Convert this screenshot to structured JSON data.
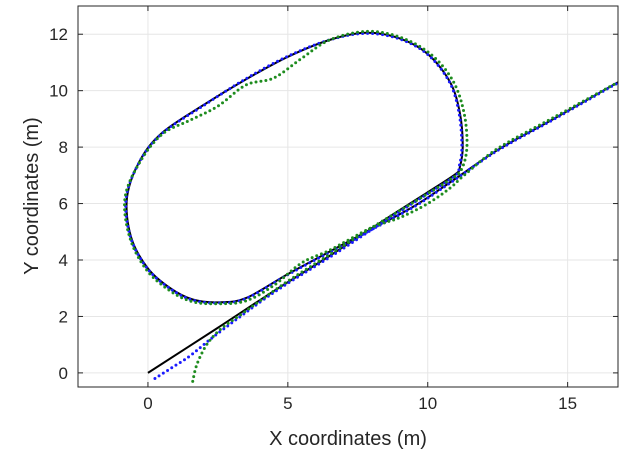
{
  "chart_data": {
    "type": "line",
    "xlabel": "X coordinates (m)",
    "ylabel": "Y coordinates (m)",
    "xlim": [
      -2.5,
      16.8
    ],
    "ylim": [
      -0.5,
      13.0
    ],
    "xticks": [
      0,
      5,
      10,
      15
    ],
    "yticks": [
      0,
      2,
      4,
      6,
      8,
      10,
      12
    ],
    "xtick_labels": [
      "0",
      "5",
      "10",
      "15"
    ],
    "ytick_labels": [
      "0",
      "2",
      "4",
      "6",
      "8",
      "10",
      "12"
    ],
    "grid": true,
    "series": [
      {
        "style": "solid-line",
        "color": "#000000",
        "points": [
          [
            0.0,
            0.0
          ],
          [
            2.5,
            1.6
          ],
          [
            4.5,
            2.9
          ],
          [
            6.5,
            4.15
          ],
          [
            8.5,
            5.45
          ],
          [
            10.0,
            6.4
          ],
          [
            11.0,
            7.05
          ],
          [
            11.15,
            7.3
          ],
          [
            11.25,
            8.0
          ],
          [
            11.15,
            9.2
          ],
          [
            10.8,
            10.3
          ],
          [
            10.0,
            11.3
          ],
          [
            9.0,
            11.85
          ],
          [
            7.8,
            12.05
          ],
          [
            6.5,
            11.8
          ],
          [
            5.0,
            11.2
          ],
          [
            3.5,
            10.4
          ],
          [
            2.0,
            9.5
          ],
          [
            0.5,
            8.5
          ],
          [
            -0.3,
            7.5
          ],
          [
            -0.75,
            6.2
          ],
          [
            -0.6,
            4.8
          ],
          [
            0.0,
            3.7
          ],
          [
            0.8,
            3.0
          ],
          [
            1.6,
            2.6
          ],
          [
            2.5,
            2.5
          ],
          [
            3.5,
            2.65
          ],
          [
            5.0,
            3.5
          ],
          [
            6.5,
            4.3
          ],
          [
            8.0,
            5.1
          ],
          [
            9.5,
            5.9
          ],
          [
            10.8,
            6.75
          ],
          [
            12.5,
            7.9
          ],
          [
            14.5,
            9.0
          ],
          [
            16.8,
            10.3
          ]
        ]
      },
      {
        "style": "dotted",
        "color": "#1a1aff",
        "points": [
          [
            0.25,
            -0.2
          ],
          [
            0.8,
            0.15
          ],
          [
            1.5,
            0.6
          ],
          [
            2.5,
            1.4
          ],
          [
            4.5,
            2.85
          ],
          [
            6.5,
            4.1
          ],
          [
            8.5,
            5.4
          ],
          [
            10.0,
            6.35
          ],
          [
            11.0,
            7.0
          ],
          [
            11.12,
            7.3
          ],
          [
            11.22,
            8.0
          ],
          [
            11.12,
            9.2
          ],
          [
            10.78,
            10.3
          ],
          [
            10.0,
            11.28
          ],
          [
            9.0,
            11.83
          ],
          [
            7.8,
            12.03
          ],
          [
            6.5,
            11.8
          ],
          [
            5.0,
            11.22
          ],
          [
            3.5,
            10.42
          ],
          [
            2.0,
            9.48
          ],
          [
            0.5,
            8.48
          ],
          [
            -0.3,
            7.48
          ],
          [
            -0.78,
            6.2
          ],
          [
            -0.62,
            4.8
          ],
          [
            -0.02,
            3.7
          ],
          [
            0.8,
            2.98
          ],
          [
            1.6,
            2.58
          ],
          [
            2.5,
            2.48
          ],
          [
            3.5,
            2.63
          ],
          [
            5.0,
            3.48
          ],
          [
            6.5,
            4.28
          ],
          [
            8.0,
            5.08
          ],
          [
            9.5,
            5.88
          ],
          [
            10.8,
            6.73
          ],
          [
            12.5,
            7.88
          ],
          [
            14.5,
            8.98
          ],
          [
            16.8,
            10.28
          ]
        ]
      },
      {
        "style": "dotted",
        "color": "#1e8c1e",
        "points": [
          [
            1.6,
            -0.3
          ],
          [
            1.75,
            0.3
          ],
          [
            2.1,
            1.0
          ],
          [
            2.6,
            1.55
          ],
          [
            3.3,
            2.05
          ],
          [
            4.0,
            2.55
          ],
          [
            5.0,
            3.25
          ],
          [
            6.5,
            4.2
          ],
          [
            8.0,
            5.15
          ],
          [
            9.5,
            6.05
          ],
          [
            10.8,
            6.85
          ],
          [
            11.2,
            7.2
          ],
          [
            11.4,
            8.0
          ],
          [
            11.3,
            9.2
          ],
          [
            10.9,
            10.35
          ],
          [
            10.1,
            11.3
          ],
          [
            9.0,
            11.9
          ],
          [
            7.8,
            12.1
          ],
          [
            6.5,
            11.8
          ],
          [
            5.5,
            11.15
          ],
          [
            4.5,
            10.45
          ],
          [
            3.5,
            10.2
          ],
          [
            2.5,
            9.45
          ],
          [
            1.5,
            8.95
          ],
          [
            0.5,
            8.45
          ],
          [
            -0.3,
            7.45
          ],
          [
            -0.82,
            6.2
          ],
          [
            -0.65,
            4.8
          ],
          [
            -0.05,
            3.65
          ],
          [
            0.8,
            2.9
          ],
          [
            1.6,
            2.52
          ],
          [
            2.5,
            2.45
          ],
          [
            3.5,
            2.55
          ],
          [
            4.5,
            3.1
          ],
          [
            5.5,
            3.9
          ],
          [
            6.5,
            4.35
          ],
          [
            8.0,
            5.15
          ],
          [
            9.0,
            5.5
          ],
          [
            10.0,
            6.0
          ],
          [
            10.8,
            6.55
          ],
          [
            11.3,
            7.0
          ],
          [
            12.5,
            7.95
          ],
          [
            14.5,
            9.05
          ],
          [
            16.8,
            10.3
          ]
        ]
      }
    ]
  }
}
